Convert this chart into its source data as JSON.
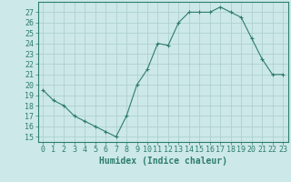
{
  "x": [
    0,
    1,
    2,
    3,
    4,
    5,
    6,
    7,
    8,
    9,
    10,
    11,
    12,
    13,
    14,
    15,
    16,
    17,
    18,
    19,
    20,
    21,
    22,
    23
  ],
  "y": [
    19.5,
    18.5,
    18.0,
    17.0,
    16.5,
    16.0,
    15.5,
    15.0,
    17.0,
    20.0,
    21.5,
    24.0,
    23.8,
    26.0,
    27.0,
    27.0,
    27.0,
    27.5,
    27.0,
    26.5,
    24.5,
    22.5,
    21.0,
    21.0
  ],
  "line_color": "#2e7d6e",
  "marker": "+",
  "bg_color": "#cce8e8",
  "grid_color": "#aacccc",
  "axis_color": "#2e7d6e",
  "xlabel": "Humidex (Indice chaleur)",
  "xlim": [
    -0.5,
    23.5
  ],
  "ylim": [
    14.5,
    28.0
  ],
  "yticks": [
    15,
    16,
    17,
    18,
    19,
    20,
    21,
    22,
    23,
    24,
    25,
    26,
    27
  ],
  "xticks": [
    0,
    1,
    2,
    3,
    4,
    5,
    6,
    7,
    8,
    9,
    10,
    11,
    12,
    13,
    14,
    15,
    16,
    17,
    18,
    19,
    20,
    21,
    22,
    23
  ],
  "tick_fontsize": 6,
  "label_fontsize": 7
}
